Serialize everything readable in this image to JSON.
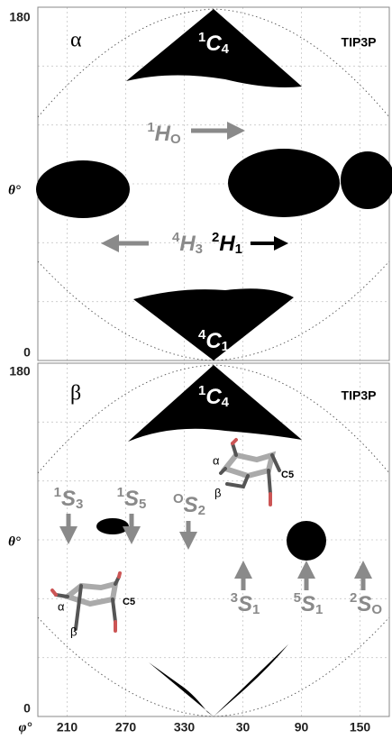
{
  "x_axis": {
    "label": "φ°",
    "ticks": [
      "210",
      "270",
      "330",
      "30",
      "90",
      "150"
    ]
  },
  "panels": [
    {
      "name": "α",
      "model": "TIP3P",
      "y_axis": {
        "label": "θ°",
        "top": "180",
        "bottom": "0"
      },
      "annotations": [
        {
          "sup": "1",
          "main": "C",
          "sub": "4"
        },
        {
          "sup": "1",
          "main": "H",
          "sub": "O"
        },
        {
          "sup": "4",
          "main": "H",
          "sub": "3"
        },
        {
          "sup": "2",
          "main": "H",
          "sub": "1"
        },
        {
          "sup": "4",
          "main": "C",
          "sub": "1"
        }
      ]
    },
    {
      "name": "β",
      "model": "TIP3P",
      "y_axis": {
        "label": "θ°",
        "top": "180",
        "bottom": "0"
      },
      "annotations": [
        {
          "sup": "1",
          "main": "C",
          "sub": "4"
        },
        {
          "sup": "1",
          "main": "S",
          "sub": "3"
        },
        {
          "sup": "1",
          "main": "S",
          "sub": "5"
        },
        {
          "sup": "O",
          "main": "S",
          "sub": "2"
        },
        {
          "sup": "3",
          "main": "S",
          "sub": "1"
        },
        {
          "sup": "5",
          "main": "S",
          "sub": "1"
        },
        {
          "sup": "2",
          "main": "S",
          "sub": "O"
        }
      ],
      "molecule_labels": [
        "α",
        "β",
        "C5",
        "α",
        "β",
        "C5"
      ]
    }
  ]
}
